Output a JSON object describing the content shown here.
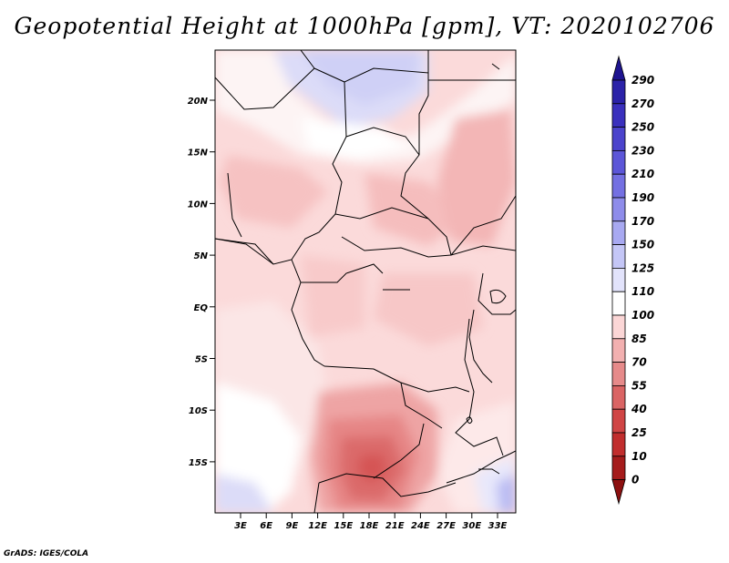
{
  "title": "Geopotential Height at 1000hPa [gpm], VT: 2020102706",
  "credit": "GrADS: IGES/COLA",
  "map": {
    "lat_labels": [
      "20N",
      "15N",
      "10N",
      "5N",
      "EQ",
      "5S",
      "10S",
      "15S"
    ],
    "lon_labels": [
      "3E",
      "6E",
      "9E",
      "12E",
      "15E",
      "18E",
      "21E",
      "24E",
      "27E",
      "30E",
      "33E"
    ]
  },
  "colorbar": {
    "levels": [
      "290",
      "270",
      "250",
      "230",
      "210",
      "190",
      "170",
      "150",
      "125",
      "110",
      "100",
      "85",
      "70",
      "55",
      "40",
      "25",
      "10",
      "0"
    ],
    "colors": [
      "#1e1490",
      "#2b22a8",
      "#3a30bd",
      "#4b43cc",
      "#5c56d8",
      "#7470e2",
      "#8e8cea",
      "#a8a9f1",
      "#c4c6f6",
      "#e2e3fb",
      "#ffffff",
      "#fbd6d6",
      "#f2b0b0",
      "#e68a8a",
      "#da6464",
      "#d04545",
      "#c12e2e",
      "#a51c1c",
      "#8c1010"
    ]
  }
}
